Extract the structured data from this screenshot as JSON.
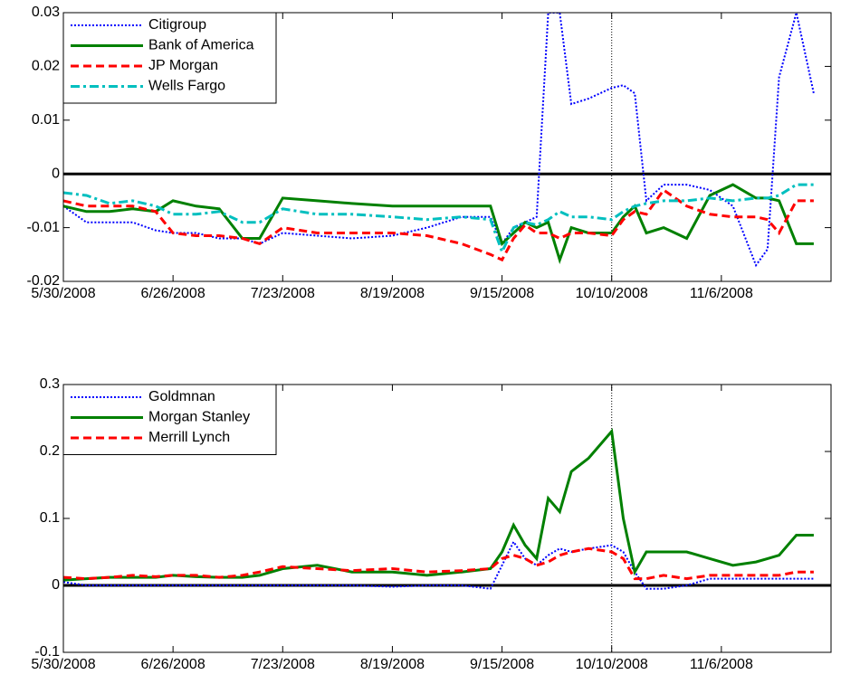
{
  "chart_data": [
    {
      "type": "line",
      "x": [
        0,
        4,
        8,
        12,
        16,
        19,
        23,
        27,
        31,
        34,
        38,
        44,
        50,
        57,
        63,
        69,
        74,
        76,
        78,
        80,
        82,
        84,
        86,
        88,
        91,
        95,
        97,
        99,
        101,
        104,
        108,
        112,
        116,
        120,
        122,
        124,
        127,
        130
      ],
      "xlim": [
        0,
        133
      ],
      "xticks": [
        {
          "value": 0,
          "label": "5/30/2008"
        },
        {
          "value": 19,
          "label": "6/26/2008"
        },
        {
          "value": 38,
          "label": "7/23/2008"
        },
        {
          "value": 57,
          "label": "8/19/2008"
        },
        {
          "value": 76,
          "label": "9/15/2008"
        },
        {
          "value": 95,
          "label": "10/10/2008"
        },
        {
          "value": 114,
          "label": "11/6/2008"
        }
      ],
      "ylim": [
        -0.02,
        0.03
      ],
      "yticks": [
        -0.02,
        -0.01,
        0,
        0.01,
        0.02,
        0.03
      ],
      "hline": 0,
      "vline": 95,
      "legend": "upper left",
      "series": [
        {
          "name": "Citigroup",
          "color": "#0000ff",
          "style": "dotted",
          "values": [
            -0.006,
            -0.009,
            -0.009,
            -0.009,
            -0.0105,
            -0.011,
            -0.011,
            -0.012,
            -0.012,
            -0.013,
            -0.011,
            -0.0115,
            -0.012,
            -0.0115,
            -0.01,
            -0.008,
            -0.008,
            -0.013,
            -0.01,
            -0.009,
            -0.008,
            0.03,
            0.03,
            0.013,
            0.014,
            0.016,
            0.0165,
            0.015,
            -0.005,
            -0.002,
            -0.002,
            -0.003,
            -0.006,
            -0.017,
            -0.014,
            0.018,
            0.03,
            0.015
          ]
        },
        {
          "name": "Bank of America",
          "color": "#008000",
          "style": "solid",
          "values": [
            -0.006,
            -0.007,
            -0.007,
            -0.0065,
            -0.007,
            -0.005,
            -0.006,
            -0.0065,
            -0.012,
            -0.012,
            -0.0045,
            -0.005,
            -0.0055,
            -0.006,
            -0.006,
            -0.006,
            -0.006,
            -0.013,
            -0.011,
            -0.009,
            -0.01,
            -0.009,
            -0.016,
            -0.01,
            -0.011,
            -0.011,
            -0.008,
            -0.006,
            -0.011,
            -0.01,
            -0.012,
            -0.004,
            -0.002,
            -0.0045,
            -0.0045,
            -0.005,
            -0.013,
            -0.013
          ]
        },
        {
          "name": "JP Morgan",
          "color": "#ff0000",
          "style": "dashed",
          "values": [
            -0.005,
            -0.006,
            -0.006,
            -0.006,
            -0.007,
            -0.011,
            -0.0115,
            -0.0115,
            -0.012,
            -0.013,
            -0.01,
            -0.011,
            -0.011,
            -0.011,
            -0.0115,
            -0.013,
            -0.015,
            -0.016,
            -0.012,
            -0.0095,
            -0.011,
            -0.011,
            -0.012,
            -0.011,
            -0.011,
            -0.0115,
            -0.0085,
            -0.007,
            -0.0075,
            -0.003,
            -0.006,
            -0.0075,
            -0.008,
            -0.008,
            -0.0085,
            -0.011,
            -0.005,
            -0.005
          ]
        },
        {
          "name": "Wells Fargo",
          "color": "#00bfbf",
          "style": "dashdot",
          "values": [
            -0.0035,
            -0.004,
            -0.0055,
            -0.005,
            -0.006,
            -0.0075,
            -0.0075,
            -0.007,
            -0.009,
            -0.009,
            -0.0065,
            -0.0075,
            -0.0075,
            -0.008,
            -0.0085,
            -0.008,
            -0.0085,
            -0.0145,
            -0.01,
            -0.009,
            -0.0095,
            -0.0085,
            -0.007,
            -0.008,
            -0.008,
            -0.0085,
            -0.007,
            -0.006,
            -0.0055,
            -0.005,
            -0.005,
            -0.0045,
            -0.005,
            -0.0045,
            -0.0045,
            -0.004,
            -0.002,
            -0.002
          ]
        }
      ]
    },
    {
      "type": "line",
      "x": [
        0,
        4,
        8,
        12,
        16,
        19,
        23,
        27,
        31,
        34,
        38,
        44,
        50,
        57,
        63,
        69,
        74,
        76,
        78,
        80,
        82,
        84,
        86,
        88,
        91,
        95,
        97,
        99,
        101,
        104,
        108,
        112,
        116,
        120,
        122,
        124,
        127,
        130
      ],
      "xlim": [
        0,
        133
      ],
      "xticks": [
        {
          "value": 0,
          "label": "5/30/2008"
        },
        {
          "value": 19,
          "label": "6/26/2008"
        },
        {
          "value": 38,
          "label": "7/23/2008"
        },
        {
          "value": 57,
          "label": "8/19/2008"
        },
        {
          "value": 76,
          "label": "9/15/2008"
        },
        {
          "value": 95,
          "label": "10/10/2008"
        },
        {
          "value": 114,
          "label": "11/6/2008"
        }
      ],
      "ylim": [
        -0.1,
        0.3
      ],
      "yticks": [
        -0.1,
        0,
        0.1,
        0.2,
        0.3
      ],
      "hline": 0,
      "vline": 95,
      "legend": "upper left",
      "series": [
        {
          "name": "Goldmnan",
          "color": "#0000ff",
          "style": "dotted",
          "values": [
            0.005,
            0,
            0,
            0,
            0,
            0,
            0,
            0,
            0,
            0,
            0,
            0,
            0,
            -0.002,
            0,
            0,
            -0.005,
            0.03,
            0.065,
            0.04,
            0.03,
            0.045,
            0.055,
            0.05,
            0.055,
            0.06,
            0.05,
            0.02,
            -0.005,
            -0.005,
            0,
            0.01,
            0.01,
            0.01,
            0.01,
            0.01,
            0.01,
            0.01
          ]
        },
        {
          "name": "Morgan Stanley",
          "color": "#008000",
          "style": "solid",
          "values": [
            0.008,
            0.01,
            0.012,
            0.012,
            0.012,
            0.015,
            0.013,
            0.012,
            0.012,
            0.015,
            0.025,
            0.03,
            0.02,
            0.02,
            0.015,
            0.02,
            0.025,
            0.05,
            0.09,
            0.06,
            0.04,
            0.13,
            0.11,
            0.17,
            0.19,
            0.23,
            0.1,
            0.02,
            0.05,
            0.05,
            0.05,
            0.04,
            0.03,
            0.035,
            0.04,
            0.045,
            0.075,
            0.075
          ]
        },
        {
          "name": "Merrill Lynch",
          "color": "#ff0000",
          "style": "dashed",
          "values": [
            0.012,
            0.01,
            0.012,
            0.015,
            0.013,
            0.015,
            0.015,
            0.012,
            0.015,
            0.02,
            0.028,
            0.025,
            0.022,
            0.025,
            0.02,
            0.022,
            0.025,
            0.04,
            0.045,
            0.04,
            0.03,
            0.035,
            0.045,
            0.05,
            0.055,
            0.05,
            0.04,
            0.01,
            0.01,
            0.015,
            0.01,
            0.015,
            0.015,
            0.015,
            0.015,
            0.015,
            0.02,
            0.02
          ]
        }
      ]
    }
  ]
}
